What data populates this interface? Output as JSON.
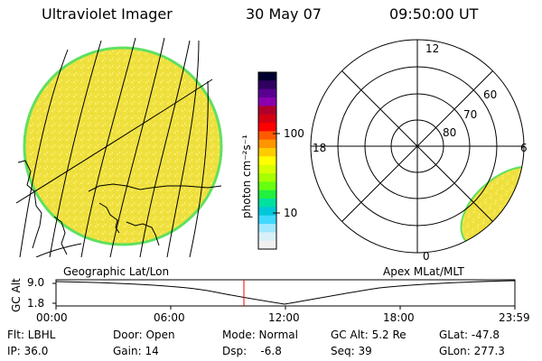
{
  "header": {
    "instrument": "Ultraviolet Imager",
    "date": "30 May 07",
    "time": "09:50:00 UT"
  },
  "colorbar": {
    "unit_label": "photon cm⁻²s⁻¹",
    "ticks": [
      "100",
      "10"
    ],
    "colors_top_to_bottom": [
      "#000030",
      "#300060",
      "#5a0090",
      "#8a00b0",
      "#b0002a",
      "#d40014",
      "#ff0000",
      "#ff5a00",
      "#ff9600",
      "#ffcc00",
      "#ffff00",
      "#d8ff00",
      "#a8ff00",
      "#68ff10",
      "#20f040",
      "#00e0a0",
      "#00c8d8",
      "#40d8ff",
      "#a0e8ff",
      "#d8f0f8",
      "#f0f0f0"
    ]
  },
  "polar": {
    "mlt_labels": [
      "12",
      "18",
      "6",
      "0"
    ],
    "lat_labels": [
      "60",
      "70",
      "80"
    ]
  },
  "timeline": {
    "left_label": "Geographic Lat/Lon",
    "right_label": "Apex MLat/MLT",
    "y_axis_label": "GC Alt",
    "y_ticks": [
      "9.0",
      "1.8"
    ],
    "x_ticks": [
      "00:00",
      "06:00",
      "12:00",
      "18:00",
      "23:59"
    ],
    "current_time_marker": "09:50"
  },
  "params": {
    "flt": "Flt: LBHL",
    "ip": "IP: 36.0",
    "door": "Door: Open",
    "gain": "Gain: 14",
    "mode": "Mode: Normal",
    "dsp": "Dsp:    -6.8",
    "gcalt": "GC Alt: 5.2 Re",
    "seq": "Seq: 39",
    "glat": "GLat: -47.8",
    "glon": "GLon: 277.3"
  },
  "colors": {
    "disk_fill": "#f0e040",
    "disk_edge": "#60e060",
    "marker_red": "#ff0000"
  }
}
